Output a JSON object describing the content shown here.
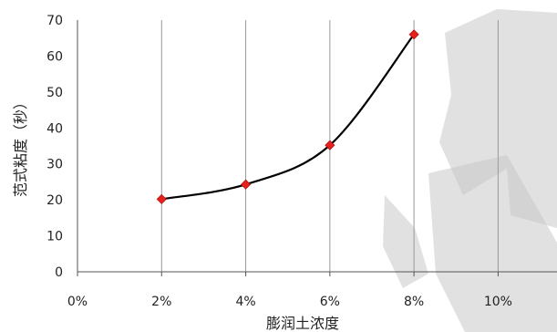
{
  "chart_data": {
    "type": "line",
    "title": "",
    "xlabel": "膨润土浓度",
    "ylabel": "范式粘度（秒）",
    "x_ticks": [
      "0%",
      "2%",
      "4%",
      "6%",
      "8%",
      "10%"
    ],
    "y_ticks": [
      "0",
      "10",
      "20",
      "30",
      "40",
      "50",
      "60",
      "70"
    ],
    "xlim": [
      0,
      11.4
    ],
    "ylim": [
      0,
      70
    ],
    "grid": true,
    "legend": "none",
    "series": [
      {
        "x": [
          2,
          4,
          6,
          8
        ],
        "y": [
          20.2,
          24.3,
          35.2,
          66.0
        ],
        "line_color": "#000000",
        "marker": "diamond",
        "marker_color": "#e8201c"
      }
    ],
    "colors": {
      "gridline_left": "#ef2b1f",
      "gridline_right": "#6b3c9c",
      "vertical_grid": "#9a9a9a",
      "axis": "#555555",
      "watermark": "#c9c9c9"
    }
  }
}
